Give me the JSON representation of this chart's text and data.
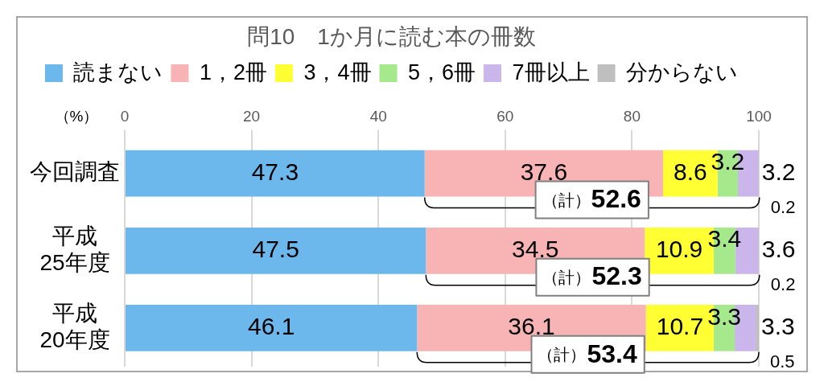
{
  "chart_data": {
    "type": "bar",
    "orientation": "horizontal",
    "stacked": true,
    "title": "問10　1か月に読む本の冊数",
    "xlabel": "（%）",
    "categories": [
      "今回調査",
      "平成25年度",
      "平成20年度"
    ],
    "series": [
      {
        "name": "読まない",
        "color": "#6cb8ec",
        "values": [
          47.3,
          47.5,
          46.1
        ]
      },
      {
        "name": "1，2冊",
        "color": "#f8b4b4",
        "values": [
          37.6,
          34.5,
          36.1
        ]
      },
      {
        "name": "3，4冊",
        "color": "#ffff33",
        "values": [
          8.6,
          10.9,
          10.7
        ]
      },
      {
        "name": "5，6冊",
        "color": "#a6e88c",
        "values": [
          3.2,
          3.4,
          3.3
        ]
      },
      {
        "name": "7冊以上",
        "color": "#cbb6ec",
        "values": [
          3.2,
          3.6,
          3.3
        ]
      },
      {
        "name": "分からない",
        "color": "#bfbfbf",
        "values": [
          0.2,
          0.2,
          0.5
        ]
      }
    ],
    "xlim": [
      0,
      100
    ],
    "xticks": [
      0,
      20,
      40,
      60,
      80,
      100
    ],
    "grid": "x",
    "legend": "top",
    "data_labels": true,
    "annotations": [
      "（計）52.6",
      "（計）52.3",
      "（計）53.4"
    ]
  }
}
